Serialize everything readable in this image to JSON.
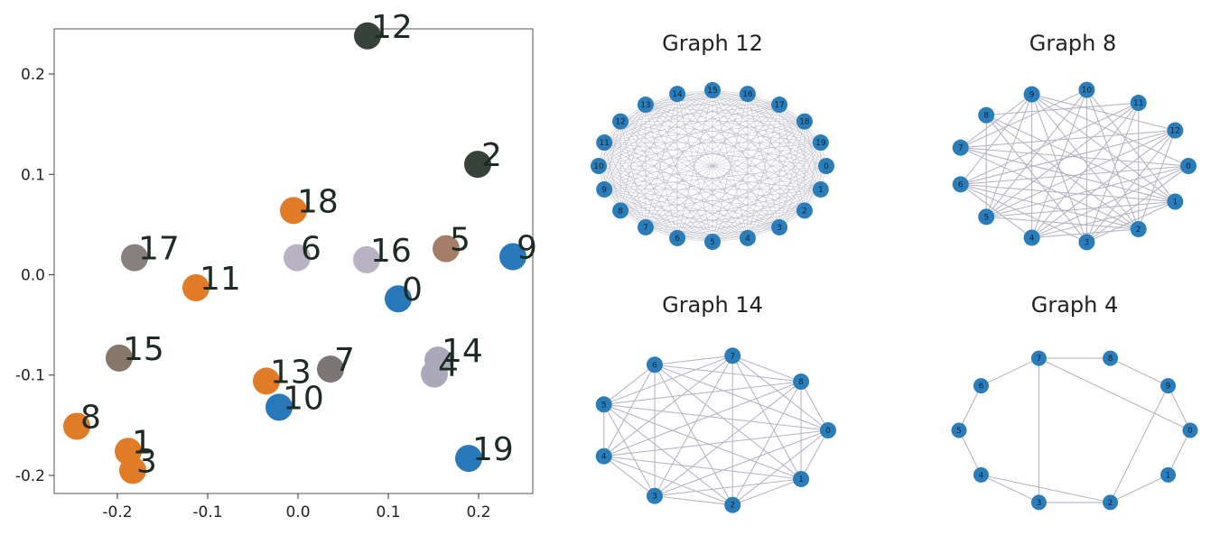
{
  "chart_data": [
    {
      "type": "scatter",
      "title": "",
      "xlabel": "",
      "ylabel": "",
      "xlim": [
        -0.27,
        0.26
      ],
      "ylim": [
        -0.218,
        0.245
      ],
      "grid": false,
      "xticks": [
        -0.2,
        -0.1,
        0.0,
        0.1,
        0.2
      ],
      "xtick_labels": [
        "-0.2",
        "-0.1",
        "0.0",
        "0.1",
        "0.2"
      ],
      "yticks": [
        0.2,
        0.1,
        0.0,
        -0.1,
        -0.2
      ],
      "ytick_labels": [
        "0.2",
        "0.1",
        "0.0",
        "-0.1",
        "-0.2"
      ],
      "points": [
        {
          "label": "0",
          "x": 0.111,
          "y": -0.024,
          "color": "#2879b9"
        },
        {
          "label": "1",
          "x": -0.188,
          "y": -0.176,
          "color": "#e07b28"
        },
        {
          "label": "2",
          "x": 0.199,
          "y": 0.11,
          "color": "#37423a"
        },
        {
          "label": "3",
          "x": -0.183,
          "y": -0.195,
          "color": "#e07b28"
        },
        {
          "label": "4",
          "x": 0.151,
          "y": -0.099,
          "color": "#aaa8b9"
        },
        {
          "label": "5",
          "x": 0.164,
          "y": 0.026,
          "color": "#a57e67"
        },
        {
          "label": "6",
          "x": -0.001,
          "y": 0.017,
          "color": "#b8b2c2"
        },
        {
          "label": "7",
          "x": 0.036,
          "y": -0.094,
          "color": "#7c7576"
        },
        {
          "label": "8",
          "x": -0.245,
          "y": -0.151,
          "color": "#e07b28"
        },
        {
          "label": "9",
          "x": 0.238,
          "y": 0.018,
          "color": "#2879b9"
        },
        {
          "label": "10",
          "x": -0.021,
          "y": -0.132,
          "color": "#2879b9"
        },
        {
          "label": "11",
          "x": -0.113,
          "y": -0.013,
          "color": "#e07b28"
        },
        {
          "label": "12",
          "x": 0.077,
          "y": 0.238,
          "color": "#37423a"
        },
        {
          "label": "13",
          "x": -0.035,
          "y": -0.106,
          "color": "#e07b28"
        },
        {
          "label": "14",
          "x": 0.155,
          "y": -0.085,
          "color": "#aaa8b9"
        },
        {
          "label": "15",
          "x": -0.198,
          "y": -0.083,
          "color": "#87766a"
        },
        {
          "label": "16",
          "x": 0.076,
          "y": 0.015,
          "color": "#b8b2c2"
        },
        {
          "label": "17",
          "x": -0.181,
          "y": 0.017,
          "color": "#87807f"
        },
        {
          "label": "18",
          "x": -0.005,
          "y": 0.064,
          "color": "#e07b28"
        },
        {
          "label": "19",
          "x": 0.189,
          "y": -0.183,
          "color": "#2879b9"
        }
      ]
    },
    {
      "type": "network",
      "title": "Graph 12",
      "node_count": 20,
      "node_labels": [
        "0",
        "1",
        "2",
        "3",
        "4",
        "5",
        "6",
        "7",
        "8",
        "9",
        "10",
        "11",
        "12",
        "13",
        "14",
        "15",
        "16",
        "17",
        "18",
        "19"
      ],
      "node_color": "#2a7db8",
      "edge_color": "#b8b6c4",
      "complete": true
    },
    {
      "type": "network",
      "title": "Graph 8",
      "node_count": 13,
      "node_labels": [
        "0",
        "1",
        "2",
        "3",
        "4",
        "5",
        "6",
        "7",
        "8",
        "9",
        "10",
        "11",
        "12"
      ],
      "node_color": "#2a7db8",
      "edge_color": "#b8b6c4",
      "edges": [
        [
          3,
          8
        ],
        [
          3,
          10
        ],
        [
          3,
          11
        ],
        [
          3,
          9
        ],
        [
          3,
          12
        ],
        [
          3,
          6
        ],
        [
          4,
          9
        ],
        [
          4,
          10
        ],
        [
          4,
          11
        ],
        [
          4,
          12
        ],
        [
          4,
          6
        ],
        [
          4,
          0
        ],
        [
          5,
          0
        ],
        [
          5,
          1
        ],
        [
          5,
          2
        ],
        [
          5,
          10
        ],
        [
          5,
          11
        ],
        [
          5,
          12
        ],
        [
          5,
          9
        ],
        [
          5,
          8
        ],
        [
          6,
          1
        ],
        [
          6,
          2
        ],
        [
          6,
          11
        ],
        [
          6,
          9
        ],
        [
          6,
          12
        ],
        [
          7,
          0
        ],
        [
          7,
          2
        ],
        [
          7,
          1
        ],
        [
          7,
          10
        ],
        [
          7,
          12
        ],
        [
          7,
          9
        ],
        [
          8,
          1
        ],
        [
          8,
          2
        ],
        [
          8,
          11
        ],
        [
          9,
          0
        ],
        [
          9,
          1
        ],
        [
          9,
          2
        ],
        [
          9,
          12
        ],
        [
          10,
          1
        ],
        [
          10,
          2
        ],
        [
          11,
          2
        ],
        [
          12,
          2
        ],
        [
          0,
          3
        ],
        [
          0,
          6
        ],
        [
          2,
          4
        ],
        [
          1,
          4
        ],
        [
          1,
          3
        ]
      ]
    },
    {
      "type": "network",
      "title": "Graph 14",
      "node_count": 9,
      "node_labels": [
        "0",
        "1",
        "2",
        "3",
        "4",
        "5",
        "6",
        "7",
        "8"
      ],
      "node_color": "#2a7db8",
      "edge_color": "#b8b6c4",
      "edges": [
        [
          0,
          1
        ],
        [
          1,
          2
        ],
        [
          2,
          3
        ],
        [
          3,
          4
        ],
        [
          4,
          5
        ],
        [
          5,
          6
        ],
        [
          6,
          7
        ],
        [
          7,
          8
        ],
        [
          8,
          0
        ],
        [
          0,
          2
        ],
        [
          0,
          3
        ],
        [
          0,
          4
        ],
        [
          0,
          5
        ],
        [
          0,
          6
        ],
        [
          0,
          7
        ],
        [
          1,
          3
        ],
        [
          1,
          4
        ],
        [
          1,
          5
        ],
        [
          1,
          6
        ],
        [
          1,
          7
        ],
        [
          1,
          8
        ],
        [
          2,
          4
        ],
        [
          2,
          5
        ],
        [
          2,
          6
        ],
        [
          2,
          7
        ],
        [
          2,
          8
        ],
        [
          3,
          5
        ],
        [
          3,
          6
        ],
        [
          3,
          7
        ],
        [
          3,
          8
        ],
        [
          4,
          6
        ],
        [
          4,
          7
        ],
        [
          4,
          8
        ],
        [
          5,
          7
        ],
        [
          5,
          8
        ],
        [
          6,
          8
        ]
      ]
    },
    {
      "type": "network",
      "title": "Graph 4",
      "node_count": 10,
      "node_labels": [
        "0",
        "1",
        "2",
        "3",
        "4",
        "5",
        "6",
        "7",
        "8",
        "9"
      ],
      "node_color": "#2a7db8",
      "edge_color": "#b8b6c4",
      "edges": [
        [
          0,
          1
        ],
        [
          1,
          2
        ],
        [
          2,
          3
        ],
        [
          3,
          4
        ],
        [
          4,
          5
        ],
        [
          5,
          6
        ],
        [
          6,
          7
        ],
        [
          7,
          8
        ],
        [
          8,
          9
        ],
        [
          9,
          0
        ],
        [
          2,
          4
        ],
        [
          3,
          7
        ],
        [
          2,
          9
        ],
        [
          7,
          0
        ]
      ]
    }
  ]
}
